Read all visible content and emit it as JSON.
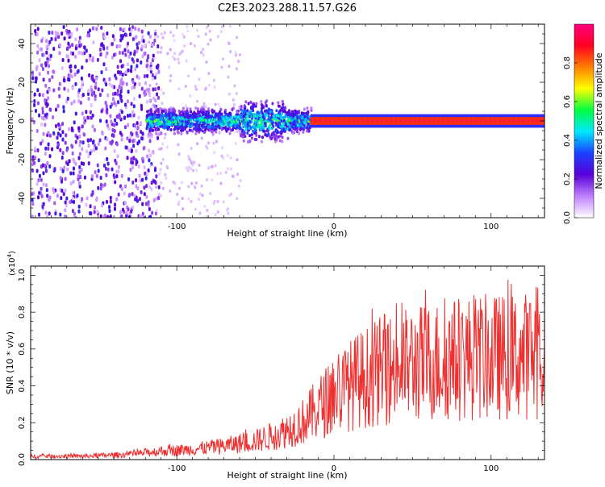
{
  "page_title": "C2E3.2023.288.11.57.G26",
  "chart_data": [
    {
      "type": "heatmap",
      "xlabel": "Height of straight line (km)",
      "ylabel": "Frequency (Hz)",
      "xlim": [
        -193,
        134
      ],
      "ylim": [
        -50,
        50
      ],
      "xticks": [
        -100,
        0,
        100
      ],
      "yticks": [
        -40,
        -20,
        0,
        20,
        40
      ],
      "colorbar": {
        "label": "Normalized spectral amplitude",
        "range": [
          0,
          1
        ],
        "ticks": [
          "0.0",
          "0.2",
          "0.4",
          "0.6",
          "0.8"
        ],
        "stops": [
          "#ffffff",
          "#c080ff",
          "#5a00d8",
          "#1a40ff",
          "#00e8ff",
          "#00ff40",
          "#ffff00",
          "#ff8000",
          "#ff0020",
          "#ff0080"
        ]
      },
      "regions": [
        {
          "x": [
            -193,
            -120
          ],
          "freq": [
            -50,
            50
          ],
          "amplitude": 0.15,
          "pattern": "noise"
        },
        {
          "x": [
            -120,
            -15
          ],
          "freq": [
            -6,
            6
          ],
          "amplitude": 0.4,
          "pattern": "band"
        },
        {
          "x": [
            -15,
            134
          ],
          "freq": [
            -2,
            2
          ],
          "amplitude": 0.85,
          "pattern": "line"
        }
      ]
    },
    {
      "type": "line",
      "xlabel": "Height of straight line (km)",
      "ylabel": "SNR (10 * v/v)",
      "yscale_label": "(x10",
      "yscale_exp": "4",
      "yscale_close": ")",
      "xlim": [
        -193,
        134
      ],
      "ylim": [
        0,
        1.05
      ],
      "xticks": [
        -100,
        0,
        100
      ],
      "yticks": [
        "0.0",
        "0.2",
        "0.4",
        "0.6",
        "0.8",
        "1.0"
      ],
      "color": "#ee3030",
      "envelope": {
        "x": [
          -193,
          -160,
          -130,
          -110,
          -90,
          -70,
          -50,
          -35,
          -20,
          -10,
          0,
          15,
          30,
          50,
          70,
          90,
          110,
          134
        ],
        "y": [
          0.02,
          0.02,
          0.03,
          0.05,
          0.06,
          0.08,
          0.11,
          0.15,
          0.22,
          0.3,
          0.38,
          0.46,
          0.52,
          0.56,
          0.58,
          0.6,
          0.6,
          0.62
        ]
      }
    }
  ]
}
